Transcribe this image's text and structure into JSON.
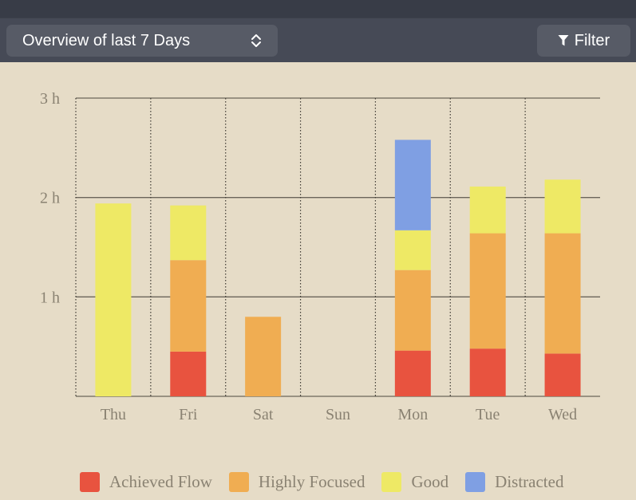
{
  "toolbar": {
    "range_label": "Overview of last 7 Days",
    "filter_label": "Filter",
    "icons": {
      "range": "up-down-chevron-icon",
      "filter": "funnel-icon"
    }
  },
  "chart_data": {
    "type": "bar",
    "stacked": true,
    "categories": [
      "Thu",
      "Fri",
      "Sat",
      "Sun",
      "Mon",
      "Tue",
      "Wed"
    ],
    "y_ticks": [
      "3 h",
      "2 h",
      "1 h"
    ],
    "y_tick_values": [
      3,
      2,
      1
    ],
    "ylim": [
      0,
      3
    ],
    "unit": "hours",
    "grid": "horizontal solid lines, vertical dotted separators",
    "legend_position": "bottom",
    "series": [
      {
        "name": "Achieved Flow",
        "color": "#e8533f",
        "values": [
          0,
          0.45,
          0,
          0,
          0.46,
          0.48,
          0.43
        ]
      },
      {
        "name": "Highly Focused",
        "color": "#f0ad52",
        "values": [
          0,
          0.92,
          0.8,
          0,
          0.81,
          1.16,
          1.21
        ]
      },
      {
        "name": "Good",
        "color": "#eee965",
        "values": [
          1.94,
          0.55,
          0,
          0,
          0.4,
          0.47,
          0.54
        ]
      },
      {
        "name": "Distracted",
        "color": "#7f9fe3",
        "values": [
          0,
          0,
          0,
          0,
          0.91,
          0,
          0
        ]
      }
    ]
  }
}
